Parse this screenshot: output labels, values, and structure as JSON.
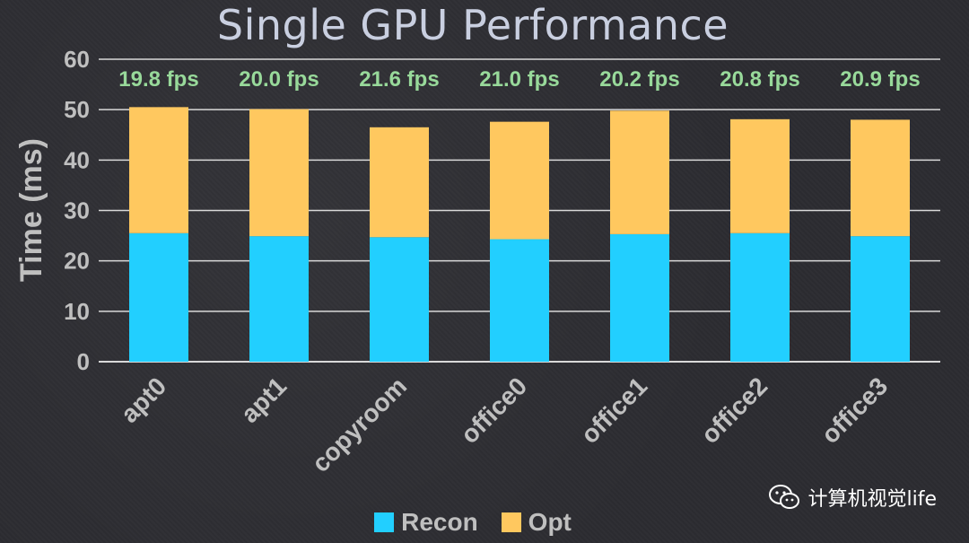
{
  "chart_data": {
    "type": "bar",
    "stacked": true,
    "title": "Single GPU Performance",
    "xlabel": "",
    "ylabel": "Time (ms)",
    "ylim": [
      0,
      60
    ],
    "yticks": [
      0,
      10,
      20,
      30,
      40,
      50,
      60
    ],
    "grid": true,
    "legend_position": "bottom",
    "categories": [
      "apt0",
      "apt1",
      "copyroom",
      "office0",
      "office1",
      "office2",
      "office3"
    ],
    "series": [
      {
        "name": "Recon",
        "color": "#22cfff",
        "values": [
          25.5,
          24.9,
          24.7,
          24.3,
          25.3,
          25.5,
          24.9
        ]
      },
      {
        "name": "Opt",
        "color": "#ffc85f",
        "values": [
          25.0,
          25.2,
          21.8,
          23.3,
          24.5,
          22.6,
          23.1
        ]
      }
    ],
    "annotations": [
      "19.8 fps",
      "20.0 fps",
      "21.6 fps",
      "21.0 fps",
      "20.2 fps",
      "20.8 fps",
      "20.9 fps"
    ]
  },
  "watermark": {
    "icon": "wechat-icon",
    "text": "计算机视觉life"
  }
}
